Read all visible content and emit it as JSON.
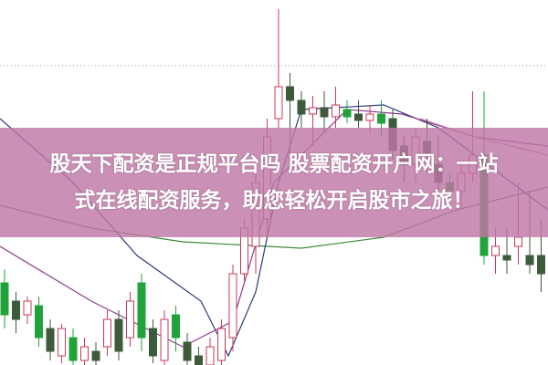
{
  "headline": {
    "line1": "股天下配资是正规平台吗 股票配资开户网：一站",
    "line2": "式在线配资服务，助您轻松开启股市之旅！"
  },
  "colors": {
    "up": "#c8385a",
    "down_dark": "#3d5a3a",
    "down_bright": "#1fa33a",
    "banner": "#c08aae",
    "ma_green": "#3a8a3a",
    "ma_navy": "#2a3a7a",
    "ma_purple": "#8a3a8a",
    "ma_pink": "#d07ab0"
  },
  "chart_data": {
    "type": "candlestick",
    "grid": "dotted horizontal",
    "gridlines": [
      82,
      56.25
    ],
    "ylim": [
      0,
      100
    ],
    "candles": [
      [
        22.5,
        13.75,
        26.25,
        10
      ],
      [
        17.5,
        12.5,
        20,
        8.75
      ],
      [
        13.75,
        17.5,
        18.75,
        11.25
      ],
      [
        16.25,
        7.5,
        18.75,
        5
      ],
      [
        10,
        3.75,
        12.5,
        1.25
      ],
      [
        2.5,
        10,
        11.25,
        0.5
      ],
      [
        7.5,
        1.25,
        10,
        0
      ],
      [
        1.25,
        5,
        7.5,
        0
      ],
      [
        3.75,
        1.25,
        6.25,
        0
      ],
      [
        5,
        12.5,
        15,
        2.5
      ],
      [
        12.5,
        3.75,
        15,
        1.25
      ],
      [
        7.5,
        17.5,
        20,
        5
      ],
      [
        22.5,
        7.5,
        25,
        3.75
      ],
      [
        10,
        2.5,
        12.5,
        0.5
      ],
      [
        1.25,
        12.5,
        15,
        0
      ],
      [
        13.75,
        7.5,
        16.25,
        3.75
      ],
      [
        6.25,
        1.25,
        8.75,
        0
      ],
      [
        2.5,
        0,
        5,
        0
      ],
      [
        0,
        5,
        7.5,
        0
      ],
      [
        1.25,
        10,
        12.5,
        0
      ],
      [
        7.5,
        25,
        27.5,
        3.75
      ],
      [
        25,
        37.5,
        40,
        22.5
      ],
      [
        32.5,
        50,
        52.5,
        25
      ],
      [
        40,
        62.5,
        67.5,
        35
      ],
      [
        67.5,
        76.25,
        97.5,
        65
      ],
      [
        76.25,
        72.5,
        80,
        57.5
      ],
      [
        72.5,
        68.75,
        75,
        65
      ],
      [
        68.75,
        70.5,
        73.75,
        60
      ],
      [
        70.5,
        68,
        75,
        63.75
      ],
      [
        68,
        71.25,
        76.25,
        65
      ],
      [
        70,
        68,
        72.5,
        66.25
      ],
      [
        68.75,
        67,
        72.5,
        65
      ],
      [
        67,
        68.75,
        71.25,
        63.75
      ],
      [
        68.75,
        66.25,
        72.5,
        62.5
      ],
      [
        67.5,
        58.75,
        70,
        56.25
      ],
      [
        60,
        55,
        62.5,
        50
      ],
      [
        55,
        62.5,
        65,
        50
      ],
      [
        61.25,
        57.5,
        67.5,
        52.5
      ],
      [
        55,
        50,
        62.5,
        47.5
      ],
      [
        50,
        47.5,
        52.5,
        45
      ],
      [
        47.5,
        52.5,
        55,
        42.5
      ],
      [
        52.5,
        57.5,
        75,
        50
      ],
      [
        57.5,
        30,
        75,
        27.5
      ],
      [
        30,
        32.5,
        37.5,
        25
      ],
      [
        30,
        28.75,
        37.5,
        25
      ],
      [
        32.5,
        35,
        50,
        27.5
      ],
      [
        30,
        27.5,
        47.5,
        25
      ],
      [
        30,
        25,
        40,
        20
      ]
    ],
    "moving_averages": [
      {
        "color": "ma_green",
        "points": [
          [
            -0.4,
            43.75
          ],
          [
            7.6,
            37.5
          ],
          [
            15.6,
            33.75
          ],
          [
            26,
            32
          ],
          [
            33.2,
            35
          ],
          [
            39.6,
            42.5
          ],
          [
            47.6,
            48.75
          ]
        ]
      },
      {
        "color": "ma_navy",
        "points": [
          [
            -0.4,
            67.5
          ],
          [
            6,
            50
          ],
          [
            11.6,
            30
          ],
          [
            17.2,
            17.5
          ],
          [
            19.6,
            2.5
          ],
          [
            22,
            20
          ],
          [
            24,
            50
          ],
          [
            26,
            70
          ],
          [
            33.2,
            71.25
          ],
          [
            38,
            65
          ],
          [
            44.4,
            50
          ],
          [
            47.6,
            42.5
          ]
        ]
      },
      {
        "color": "ma_purple",
        "points": [
          [
            -0.4,
            32.5
          ],
          [
            7.6,
            17.5
          ],
          [
            15.6,
            5
          ],
          [
            20,
            12
          ],
          [
            23.6,
            50
          ],
          [
            30,
            70
          ],
          [
            34.8,
            68.75
          ],
          [
            41.2,
            62.5
          ],
          [
            47.6,
            60
          ]
        ]
      },
      {
        "color": "ma_pink",
        "points": [
          [
            36.4,
            67.5
          ],
          [
            41.2,
            62.5
          ],
          [
            47.6,
            57.5
          ]
        ]
      }
    ]
  }
}
